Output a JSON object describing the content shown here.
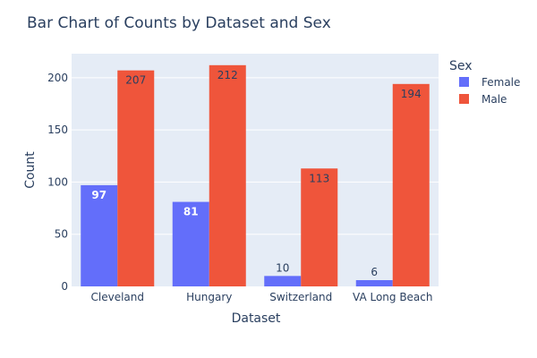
{
  "chart_data": {
    "type": "bar",
    "title": "Bar Chart of Counts by Dataset and Sex",
    "xlabel": "Dataset",
    "ylabel": "Count",
    "categories": [
      "Cleveland",
      "Hungary",
      "Switzerland",
      "VA Long Beach"
    ],
    "series": [
      {
        "name": "Female",
        "values": [
          97,
          81,
          10,
          6
        ],
        "color": "#636efa"
      },
      {
        "name": "Male",
        "values": [
          207,
          212,
          113,
          194
        ],
        "color": "#ef553b"
      }
    ],
    "ylim": [
      0,
      223
    ],
    "yticks": [
      0,
      50,
      100,
      150,
      200
    ],
    "legend": {
      "title": "Sex",
      "position": "top-right"
    },
    "grid": true,
    "plot_bgcolor": "#e5ecf6"
  }
}
